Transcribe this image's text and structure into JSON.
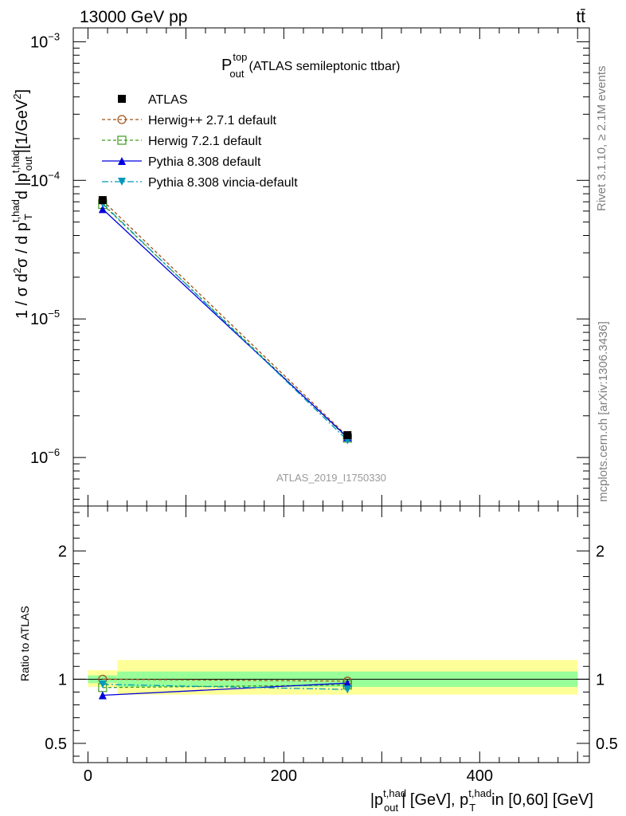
{
  "header": {
    "left": "13000 GeV pp",
    "right": "tt̄"
  },
  "side_labels": {
    "rivet": "Rivet 3.1.10, ≥ 2.1M events",
    "mcplots": "mcplots.cern.ch [arXiv:1306.3436]"
  },
  "chart_data": {
    "type": "line",
    "title": {
      "main": "P",
      "sup": "top",
      "sub": "out",
      "rest": "(ATLAS semileptonic ttbar)"
    },
    "analysis_tag": "ATLAS_2019_I1750330",
    "ylabel_main": "1 / σ d²σ / d p_T^{t,had} d |p_out^{t,had}| [1/GeV²]",
    "ylabel_ratio": "Ratio to ATLAS",
    "xlabel": "|p_out^{t,had}| [GeV], p_T^{t,had} in [0,60] [GeV]",
    "xlim": [
      -15,
      512
    ],
    "main_ylim_log10": [
      -6.35,
      -2.9
    ],
    "ratio_ylim": [
      0.35,
      2.35
    ],
    "x_ticks": [
      {
        "value": 0,
        "label": "0"
      },
      {
        "value": 200,
        "label": "200"
      },
      {
        "value": 400,
        "label": "400"
      }
    ],
    "main_y_ticks": [
      {
        "exp": -6,
        "label": "10",
        "sup": "−6"
      },
      {
        "exp": -5,
        "label": "10",
        "sup": "−5"
      },
      {
        "exp": -4,
        "label": "10",
        "sup": "−4"
      },
      {
        "exp": -3,
        "label": "10",
        "sup": "−3"
      }
    ],
    "ratio_y_ticks": [
      {
        "value": 0.5,
        "label": "0.5"
      },
      {
        "value": 1,
        "label": "1"
      },
      {
        "value": 2,
        "label": "2"
      }
    ],
    "x": [
      15,
      265
    ],
    "data_points": {
      "name": "ATLAS",
      "values": [
        7.2e-05,
        1.45e-06
      ],
      "color": "#000000"
    },
    "series": [
      {
        "name": "Herwig++ 2.7.1 default",
        "values": [
          7.15e-05,
          1.42e-06
        ],
        "ratio": [
          1.0,
          0.985
        ],
        "color": "#a0521a",
        "dash": "4,3",
        "marker": "circle-open"
      },
      {
        "name": "Herwig 7.2.1 default",
        "values": [
          6.7e-05,
          1.38e-06
        ],
        "ratio": [
          0.935,
          0.955
        ],
        "color": "#3e9a1a",
        "dash": "4,3",
        "marker": "square-open"
      },
      {
        "name": "Pythia 8.308 default",
        "values": [
          6.2e-05,
          1.4e-06
        ],
        "ratio": [
          0.875,
          0.97
        ],
        "color": "#0000dd",
        "dash": "",
        "marker": "triangle-up"
      },
      {
        "name": "Pythia 8.308 vincia-default",
        "values": [
          6.8e-05,
          1.33e-06
        ],
        "ratio": [
          0.96,
          0.92
        ],
        "color": "#0099bb",
        "dash": "8,3,2,3",
        "marker": "triangle-down"
      }
    ],
    "uncertainty_bands": {
      "bins": [
        {
          "xlow": 0,
          "xhigh": 30,
          "stat_low": 0.97,
          "stat_high": 1.03,
          "tot_low": 0.94,
          "tot_high": 1.07
        },
        {
          "xlow": 30,
          "xhigh": 500,
          "stat_low": 0.94,
          "stat_high": 1.06,
          "tot_low": 0.88,
          "tot_high": 1.15
        }
      ],
      "stat_color": "#99ff99",
      "total_color": "#ffff99"
    }
  }
}
